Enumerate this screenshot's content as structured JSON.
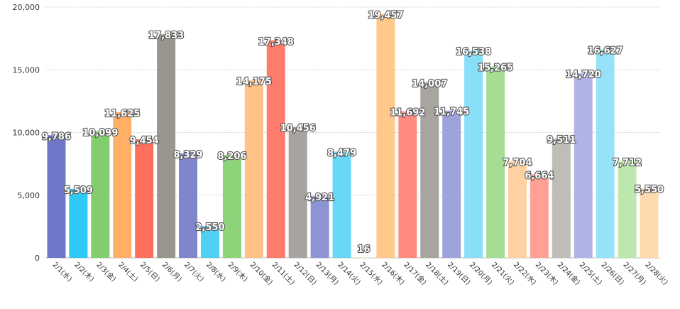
{
  "chart_data": {
    "type": "bar",
    "categories": [
      "2/1(水)",
      "2/2(木)",
      "2/3(金)",
      "2/4(土)",
      "2/5(日)",
      "2/6(月)",
      "2/7(火)",
      "2/8(水)",
      "2/9(木)",
      "2/10(金)",
      "2/11(土)",
      "2/12(日)",
      "2/13(月)",
      "2/14(火)",
      "2/15(水)",
      "2/16(木)",
      "2/17(金)",
      "2/18(土)",
      "2/19(日)",
      "2/20(月)",
      "2/21(火)",
      "2/22(水)",
      "2/23(木)",
      "2/24(金)",
      "2/25(土)",
      "2/26(日)",
      "2/27(月)",
      "2/28(火)"
    ],
    "values": [
      9786,
      5509,
      10099,
      11625,
      9454,
      17833,
      8329,
      2550,
      8206,
      14175,
      17348,
      10456,
      4921,
      8479,
      16,
      19457,
      11692,
      14007,
      11745,
      16538,
      15265,
      7704,
      6664,
      9511,
      14720,
      16627,
      7712,
      5550
    ],
    "value_labels": [
      "9,786",
      "5,509",
      "10,099",
      "11,625",
      "9,454",
      "17,833",
      "8,329",
      "2,550",
      "8,206",
      "14,175",
      "17,348",
      "10,456",
      "4,921",
      "8,479",
      "16",
      "19,457",
      "11,692",
      "14,007",
      "11,745",
      "16,538",
      "15,265",
      "7,704",
      "6,664",
      "9,511",
      "14,720",
      "16,627",
      "7,712",
      "5,550"
    ],
    "colors": [
      "#6f78c8",
      "#2ec9f5",
      "#82cd6e",
      "#ffb066",
      "#ff6f5e",
      "#9a968e",
      "#7f86cc",
      "#4fd0f3",
      "#8dd37a",
      "#ffc184",
      "#ff7b6c",
      "#a7a49f",
      "#8d93d3",
      "#67d8f6",
      "#c8e8a8",
      "#ffc98c",
      "#ff8b7e",
      "#a8a5a0",
      "#9ea3da",
      "#87dff8",
      "#a5dd93",
      "#ffd1a2",
      "#ffa092",
      "#c0bcb8",
      "#b0b4e4",
      "#95e2f9",
      "#bde8ad",
      "#ffd9b0"
    ],
    "yticks": [
      "0",
      "5,000",
      "10,000",
      "15,000",
      "20,000"
    ],
    "ylim": [
      0,
      20000
    ],
    "grid": true,
    "title": "",
    "xlabel": "",
    "ylabel": ""
  }
}
